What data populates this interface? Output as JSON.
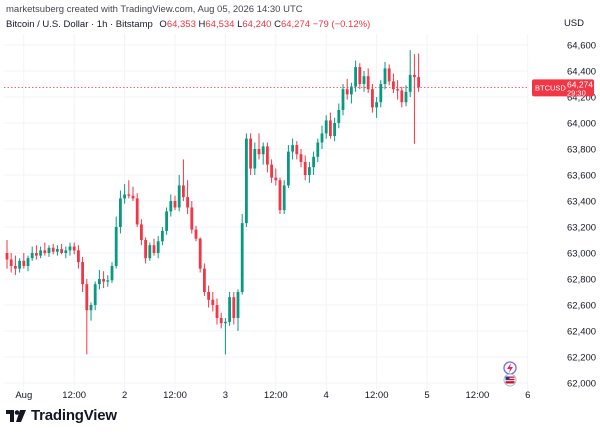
{
  "header": {
    "created_by": "marketsuberg created with TradingView.com, Aug 05, 2026 14:30 UTC"
  },
  "symbol": {
    "title": "Bitcoin / U.S. Dollar · 1h · Bitstamp",
    "open_label": "O",
    "open": "64,353",
    "high_label": "H",
    "high": "64,534",
    "low_label": "L",
    "low": "64,240",
    "close_label": "C",
    "close": "64,274",
    "change": "−79 (−0.12%)"
  },
  "currency": "USD",
  "price_tag": {
    "symbol": "BTCUSD",
    "price": "64,274",
    "countdown": "29:30"
  },
  "branding": {
    "name": "TradingView"
  },
  "colors": {
    "up": "#089981",
    "down": "#f23645",
    "grid": "#f0f3fa",
    "axis_text": "#131722",
    "price_line": "#f23645"
  },
  "icons": [
    "lightning-event-icon",
    "us-flag-event-icon",
    "tradingview-logo-icon"
  ],
  "chart_data": {
    "type": "candlestick",
    "title": "",
    "xlabel": "",
    "ylabel": "",
    "ylim": [
      62000,
      64700
    ],
    "y_ticks": [
      "64,600",
      "64,400",
      "64,200",
      "64,000",
      "63,800",
      "63,600",
      "63,400",
      "63,200",
      "63,000",
      "62,800",
      "62,600",
      "62,400",
      "62,200",
      "62,000"
    ],
    "x_ticks": [
      {
        "label": "Aug",
        "index": 4
      },
      {
        "label": "12:00",
        "index": 16
      },
      {
        "label": "2",
        "index": 28
      },
      {
        "label": "12:00",
        "index": 40
      },
      {
        "label": "3",
        "index": 52
      },
      {
        "label": "12:00",
        "index": 64
      },
      {
        "label": "4",
        "index": 76
      },
      {
        "label": "12:00",
        "index": 88
      },
      {
        "label": "5",
        "index": 100
      },
      {
        "label": "12:00",
        "index": 112
      },
      {
        "label": "6",
        "index": 124
      }
    ],
    "last_price": 64274,
    "candles": [
      [
        63000,
        63100,
        62880,
        62950
      ],
      [
        62950,
        63000,
        62850,
        62900
      ],
      [
        62900,
        62980,
        62830,
        62880
      ],
      [
        62880,
        62960,
        62850,
        62940
      ],
      [
        62940,
        63000,
        62880,
        62900
      ],
      [
        62900,
        62980,
        62860,
        62960
      ],
      [
        62960,
        63050,
        62940,
        63000
      ],
      [
        63000,
        63060,
        62950,
        62980
      ],
      [
        62980,
        63050,
        62960,
        63020
      ],
      [
        63020,
        63080,
        62980,
        63000
      ],
      [
        63000,
        63060,
        62970,
        63040
      ],
      [
        63040,
        63070,
        62990,
        63010
      ],
      [
        63010,
        63060,
        62980,
        63030
      ],
      [
        63030,
        63070,
        62990,
        63000
      ],
      [
        63000,
        63050,
        62960,
        63020
      ],
      [
        63020,
        63080,
        62980,
        63050
      ],
      [
        63050,
        63080,
        62990,
        63020
      ],
      [
        63020,
        63060,
        62880,
        62930
      ],
      [
        62930,
        62970,
        62700,
        62760
      ],
      [
        62760,
        62800,
        62220,
        62560
      ],
      [
        62560,
        62620,
        62480,
        62600
      ],
      [
        62600,
        62780,
        62560,
        62760
      ],
      [
        62760,
        62870,
        62720,
        62800
      ],
      [
        62800,
        62860,
        62730,
        62780
      ],
      [
        62780,
        62830,
        62740,
        62790
      ],
      [
        62790,
        62930,
        62770,
        62900
      ],
      [
        62900,
        63280,
        62880,
        63200
      ],
      [
        63200,
        63480,
        63150,
        63420
      ],
      [
        63420,
        63530,
        63380,
        63450
      ],
      [
        63450,
        63560,
        63420,
        63440
      ],
      [
        63440,
        63510,
        63400,
        63420
      ],
      [
        63420,
        63460,
        63200,
        63220
      ],
      [
        63220,
        63260,
        63060,
        63100
      ],
      [
        63100,
        63120,
        62920,
        62960
      ],
      [
        62960,
        63080,
        62940,
        63060
      ],
      [
        63060,
        63110,
        62980,
        63000
      ],
      [
        63000,
        63130,
        62960,
        63090
      ],
      [
        63090,
        63200,
        63060,
        63170
      ],
      [
        63170,
        63350,
        63140,
        63320
      ],
      [
        63320,
        63450,
        63280,
        63400
      ],
      [
        63400,
        63440,
        63330,
        63350
      ],
      [
        63350,
        63600,
        63320,
        63520
      ],
      [
        63520,
        63720,
        63400,
        63430
      ],
      [
        63430,
        63560,
        63300,
        63350
      ],
      [
        63350,
        63400,
        63150,
        63180
      ],
      [
        63180,
        63210,
        63090,
        63110
      ],
      [
        63110,
        63120,
        62850,
        62880
      ],
      [
        62880,
        62920,
        62670,
        62700
      ],
      [
        62700,
        62750,
        62580,
        62640
      ],
      [
        62640,
        62700,
        62550,
        62600
      ],
      [
        62600,
        62650,
        62450,
        62500
      ],
      [
        62500,
        62540,
        62420,
        62460
      ],
      [
        62460,
        62500,
        62220,
        62470
      ],
      [
        62470,
        62700,
        62440,
        62660
      ],
      [
        62660,
        62700,
        62450,
        62500
      ],
      [
        62500,
        62720,
        62400,
        62700
      ],
      [
        62700,
        63300,
        62680,
        63230
      ],
      [
        63230,
        63920,
        63200,
        63880
      ],
      [
        63880,
        63920,
        63600,
        63650
      ],
      [
        63650,
        63850,
        63600,
        63800
      ],
      [
        63800,
        63920,
        63720,
        63760
      ],
      [
        63760,
        63850,
        63680,
        63820
      ],
      [
        63820,
        63850,
        63620,
        63680
      ],
      [
        63680,
        63720,
        63540,
        63580
      ],
      [
        63580,
        63650,
        63520,
        63560
      ],
      [
        63560,
        63580,
        63300,
        63330
      ],
      [
        63330,
        63560,
        63300,
        63520
      ],
      [
        63520,
        63830,
        63500,
        63780
      ],
      [
        63780,
        63880,
        63720,
        63830
      ],
      [
        63830,
        63860,
        63720,
        63760
      ],
      [
        63760,
        63800,
        63660,
        63700
      ],
      [
        63700,
        63750,
        63560,
        63600
      ],
      [
        63600,
        63700,
        63540,
        63660
      ],
      [
        63660,
        63780,
        63600,
        63740
      ],
      [
        63740,
        63880,
        63700,
        63850
      ],
      [
        63850,
        63980,
        63800,
        63920
      ],
      [
        63920,
        64060,
        63880,
        64020
      ],
      [
        64020,
        64080,
        63880,
        63900
      ],
      [
        63900,
        64040,
        63860,
        64000
      ],
      [
        64000,
        64150,
        63960,
        64100
      ],
      [
        64100,
        64300,
        64060,
        64260
      ],
      [
        64260,
        64340,
        64180,
        64220
      ],
      [
        64220,
        64310,
        64150,
        64280
      ],
      [
        64280,
        64480,
        64240,
        64430
      ],
      [
        64430,
        64460,
        64260,
        64300
      ],
      [
        64300,
        64400,
        64240,
        64360
      ],
      [
        64360,
        64420,
        64230,
        64260
      ],
      [
        64260,
        64300,
        64080,
        64120
      ],
      [
        64120,
        64200,
        64040,
        64160
      ],
      [
        64160,
        64330,
        64120,
        64300
      ],
      [
        64300,
        64470,
        64260,
        64420
      ],
      [
        64420,
        64450,
        64290,
        64320
      ],
      [
        64320,
        64380,
        64230,
        64260
      ],
      [
        64260,
        64330,
        64180,
        64250
      ],
      [
        64250,
        64280,
        64120,
        64160
      ],
      [
        64160,
        64290,
        64130,
        64240
      ],
      [
        64240,
        64560,
        64200,
        64370
      ],
      [
        64370,
        64530,
        63840,
        64353
      ],
      [
        64353,
        64534,
        64240,
        64274
      ]
    ],
    "events": [
      "lightning",
      "us-flag"
    ]
  }
}
